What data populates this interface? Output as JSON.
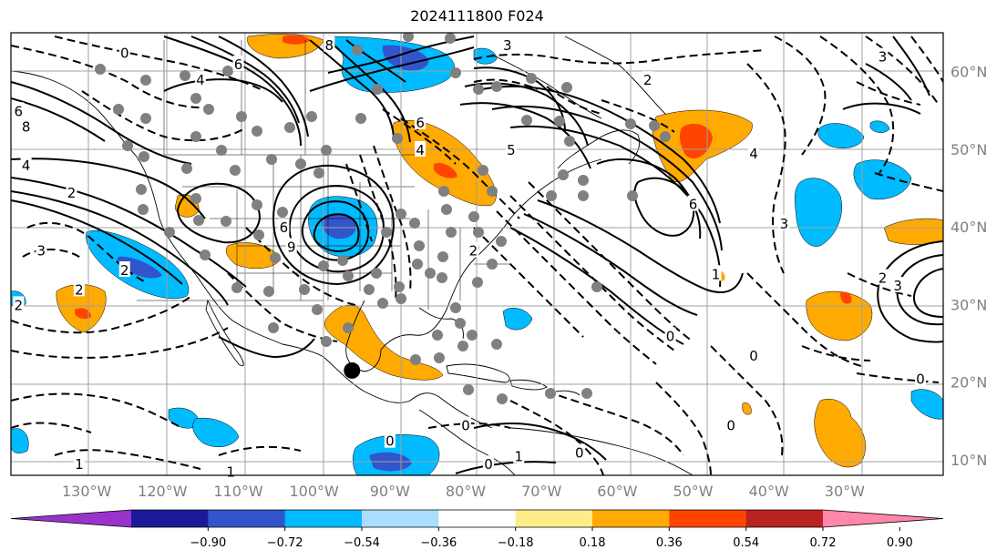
{
  "title": "2024111800 F024",
  "map": {
    "lon_range": [
      -140,
      -17
    ],
    "lat_range": [
      8,
      65
    ],
    "lon_ticks": [
      {
        "lon": -130,
        "label": "130°W"
      },
      {
        "lon": -120,
        "label": "120°W"
      },
      {
        "lon": -110,
        "label": "110°W"
      },
      {
        "lon": -100,
        "label": "100°W"
      },
      {
        "lon": -90,
        "label": "90°W"
      },
      {
        "lon": -80,
        "label": "80°W"
      },
      {
        "lon": -70,
        "label": "70°W"
      },
      {
        "lon": -60,
        "label": "60°W"
      },
      {
        "lon": -50,
        "label": "50°W"
      },
      {
        "lon": -40,
        "label": "40°W"
      },
      {
        "lon": -30,
        "label": "30°W"
      }
    ],
    "lat_ticks": [
      {
        "lat": 60,
        "label": "60°N"
      },
      {
        "lat": 50,
        "label": "50°N"
      },
      {
        "lat": 40,
        "label": "40°N"
      },
      {
        "lat": 30,
        "label": "30°N"
      },
      {
        "lat": 20,
        "label": "20°N"
      },
      {
        "lat": 10,
        "label": "10°N"
      }
    ],
    "grid": true,
    "contour_labels": [
      {
        "text": "6",
        "lon": -104,
        "lat": 40
      },
      {
        "text": "9",
        "lon": -103,
        "lat": 37.5
      },
      {
        "text": "6",
        "lon": -110,
        "lat": 61
      },
      {
        "text": "4",
        "lon": -115,
        "lat": 59
      },
      {
        "text": "8",
        "lon": -98,
        "lat": 63.5
      },
      {
        "text": "6",
        "lon": -86,
        "lat": 53.5
      },
      {
        "text": "4",
        "lon": -86,
        "lat": 50
      },
      {
        "text": "6",
        "lon": -139,
        "lat": 55
      },
      {
        "text": "8",
        "lon": -138,
        "lat": 53
      },
      {
        "text": "4",
        "lon": -138,
        "lat": 48
      },
      {
        "text": "2",
        "lon": -132,
        "lat": 44.5
      },
      {
        "text": "3",
        "lon": -136,
        "lat": 37
      },
      {
        "text": "2",
        "lon": -125,
        "lat": 34.5
      },
      {
        "text": "2",
        "lon": -131,
        "lat": 32
      },
      {
        "text": "2",
        "lon": -139,
        "lat": 30
      },
      {
        "text": "5",
        "lon": -74,
        "lat": 50
      },
      {
        "text": "3",
        "lon": -74.5,
        "lat": 63.5
      },
      {
        "text": "2",
        "lon": -56,
        "lat": 59
      },
      {
        "text": "2",
        "lon": -79,
        "lat": 37
      },
      {
        "text": "6",
        "lon": -50,
        "lat": 43
      },
      {
        "text": "4",
        "lon": -42,
        "lat": 49.5
      },
      {
        "text": "3",
        "lon": -38,
        "lat": 40.5
      },
      {
        "text": "1",
        "lon": -47,
        "lat": 34
      },
      {
        "text": "0",
        "lon": -53,
        "lat": 26
      },
      {
        "text": "0",
        "lon": -42,
        "lat": 23.5
      },
      {
        "text": "0",
        "lon": -45,
        "lat": 14.5
      },
      {
        "text": "2",
        "lon": -25,
        "lat": 33.5
      },
      {
        "text": "3",
        "lon": -23,
        "lat": 32.5
      },
      {
        "text": "0",
        "lon": -20,
        "lat": 20.5
      },
      {
        "text": "0",
        "lon": -80,
        "lat": 14.5
      },
      {
        "text": "0",
        "lon": -90,
        "lat": 12.5
      },
      {
        "text": "0",
        "lon": -77,
        "lat": 9.5
      },
      {
        "text": "1",
        "lon": -73,
        "lat": 10.5
      },
      {
        "text": "0",
        "lon": -65,
        "lat": 11
      },
      {
        "text": "1",
        "lon": -131,
        "lat": 9.5
      },
      {
        "text": "1",
        "lon": -111,
        "lat": 8.5
      },
      {
        "text": "0",
        "lon": -125,
        "lat": 62.5
      },
      {
        "text": "3",
        "lon": -25,
        "lat": 62
      }
    ],
    "marker": {
      "lon": -95,
      "lat": 21.5,
      "color": "#000000"
    }
  },
  "colorbar": {
    "colors": [
      "#9933cc",
      "#1a1a99",
      "#3355cc",
      "#00bbff",
      "#aaddff",
      "#ffffff",
      "#ffee88",
      "#ffaa00",
      "#ff4400",
      "#bb2222",
      "#ff88aa"
    ],
    "tick_labels": [
      "−0.90",
      "−0.72",
      "−0.54",
      "−0.36",
      "−0.18",
      "0.18",
      "0.36",
      "0.54",
      "0.72",
      "0.90"
    ]
  }
}
